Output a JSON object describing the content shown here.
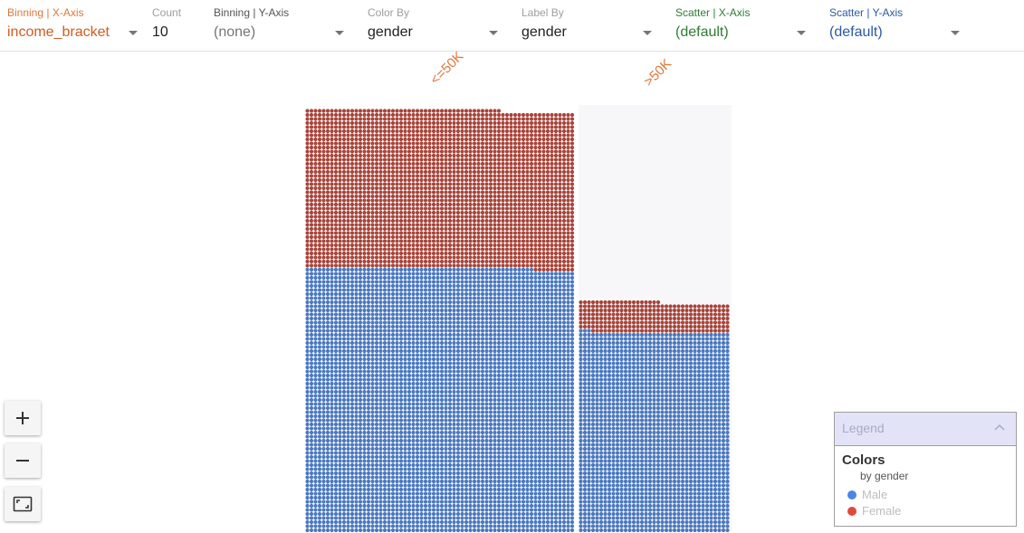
{
  "toolbar": {
    "binning_x": {
      "label": "Binning | X-Axis",
      "value": "income_bracket",
      "label_color": "#e0773a",
      "value_color": "#d35a1f"
    },
    "count": {
      "label": "Count",
      "value": "10"
    },
    "binning_y": {
      "label": "Binning | Y-Axis",
      "value": "(none)"
    },
    "color_by": {
      "label": "Color By",
      "value": "gender"
    },
    "label_by": {
      "label": "Label By",
      "value": "gender"
    },
    "scatter_x": {
      "label": "Scatter | X-Axis",
      "value": "(default)",
      "color": "#2e7d32"
    },
    "scatter_y": {
      "label": "Scatter | Y-Axis",
      "value": "(default)",
      "color": "#2a5aa8"
    }
  },
  "facets": [
    {
      "label": "<=50K"
    },
    {
      "label": ">50K"
    }
  ],
  "chart_data": {
    "type": "scatter",
    "description_free": true,
    "bins": [
      {
        "label": "<=50K",
        "series": [
          {
            "name": "Male",
            "share": 0.63
          },
          {
            "name": "Female",
            "share": 0.37
          }
        ]
      },
      {
        "label": ">50K",
        "series": [
          {
            "name": "Male",
            "share": 0.85
          },
          {
            "name": "Female",
            "share": 0.15
          }
        ]
      }
    ],
    "colors": {
      "Male": "#4a78bf",
      "Female": "#a8443a"
    }
  },
  "zoom": {
    "in_icon": "plus-icon",
    "out_icon": "minus-icon",
    "fit_icon": "fit-screen-icon"
  },
  "legend": {
    "header": "Legend",
    "title": "Colors",
    "subtitle": "by gender",
    "items": [
      {
        "label": "Male",
        "color": "#4a86e8"
      },
      {
        "label": "Female",
        "color": "#e04a3a"
      }
    ]
  }
}
